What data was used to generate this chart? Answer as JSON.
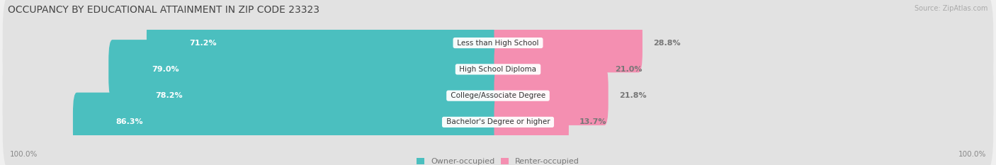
{
  "title": "OCCUPANCY BY EDUCATIONAL ATTAINMENT IN ZIP CODE 23323",
  "source": "Source: ZipAtlas.com",
  "categories": [
    "Less than High School",
    "High School Diploma",
    "College/Associate Degree",
    "Bachelor's Degree or higher"
  ],
  "owner_pct": [
    71.2,
    79.0,
    78.2,
    86.3
  ],
  "renter_pct": [
    28.8,
    21.0,
    21.8,
    13.7
  ],
  "owner_color": "#4bbfbf",
  "renter_color": "#f48fb1",
  "bg_color": "#f0f0f0",
  "bar_bg_color": "#e2e2e2",
  "title_fontsize": 10,
  "label_fontsize": 8,
  "tick_fontsize": 7.5,
  "legend_fontsize": 8,
  "source_fontsize": 7
}
